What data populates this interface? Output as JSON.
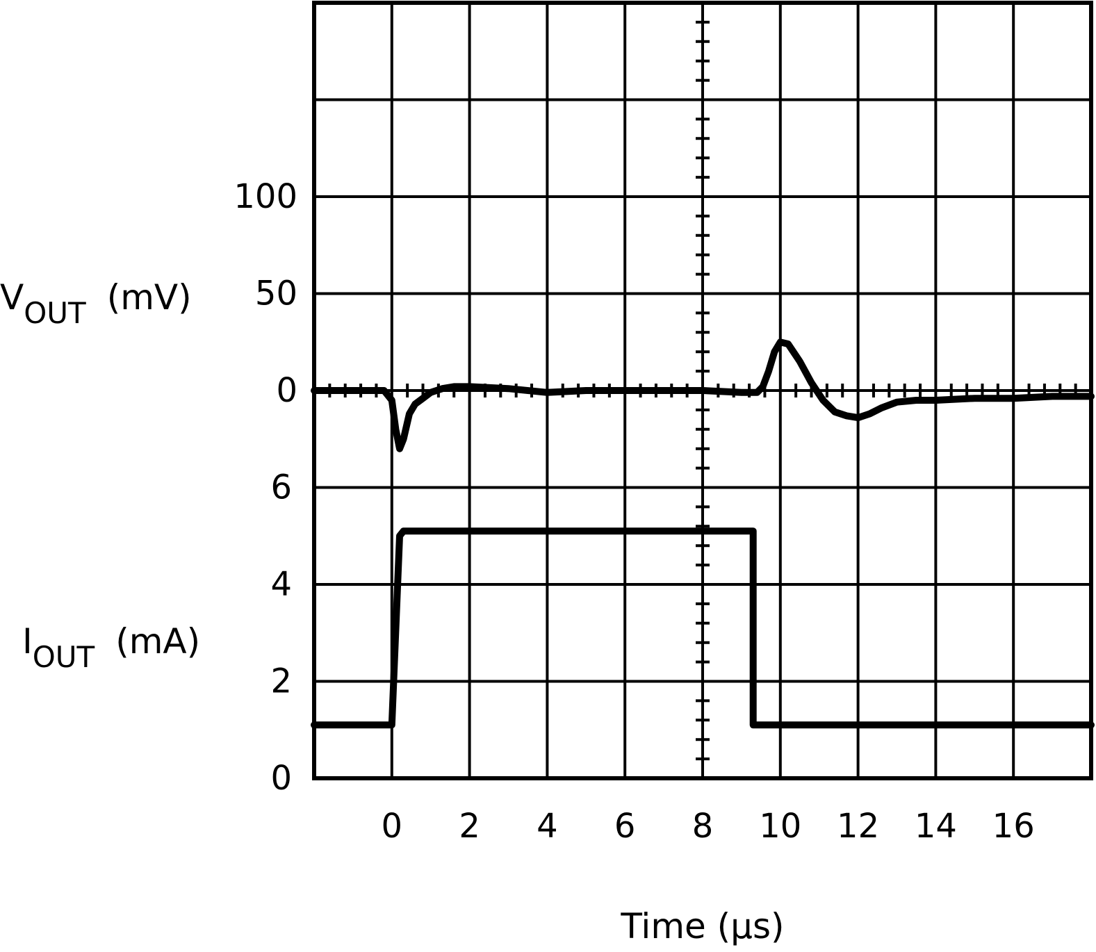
{
  "chart_data": {
    "type": "line",
    "xlabel": "Time (µs)",
    "x_ticks": [
      "0",
      "2",
      "4",
      "6",
      "8",
      "10",
      "12",
      "14",
      "16"
    ],
    "xlim": [
      -2,
      18
    ],
    "grid": true,
    "vout_axis": {
      "label_main": "V",
      "label_sub": "OUT",
      "label_unit": "(mV)",
      "ticks": [
        "100",
        "50",
        "0"
      ],
      "tick_values": [
        100,
        50,
        0
      ],
      "zero_row": 4
    },
    "iout_axis": {
      "label_main": "I",
      "label_sub": "OUT",
      "label_unit": "(mA)",
      "ticks": [
        "6",
        "4",
        "2",
        "0"
      ],
      "tick_values": [
        6,
        4,
        2,
        0
      ]
    },
    "series": [
      {
        "axis": "vout",
        "x": [
          -2,
          -0.2,
          0,
          0.1,
          0.2,
          0.3,
          0.45,
          0.6,
          0.8,
          1.0,
          1.3,
          1.6,
          2.0,
          3.0,
          4.0,
          5.0,
          6.0,
          7.0,
          8.0,
          9.0,
          9.4,
          9.55,
          9.7,
          9.85,
          10.0,
          10.2,
          10.5,
          10.8,
          11.1,
          11.4,
          11.7,
          12.0,
          12.3,
          12.6,
          13.0,
          13.5,
          14.0,
          15.0,
          16.0,
          17.0,
          18.0
        ],
        "y": [
          0,
          0,
          -5,
          -20,
          -30,
          -25,
          -12,
          -7,
          -4,
          -1,
          1,
          2,
          2,
          1,
          -1,
          0,
          0,
          0,
          0,
          -1,
          -1,
          2,
          10,
          20,
          25,
          24,
          15,
          4,
          -5,
          -11,
          -13,
          -14,
          -12,
          -9,
          -6,
          -5,
          -5,
          -4,
          -4,
          -3,
          -3
        ]
      },
      {
        "axis": "iout",
        "x": [
          -2,
          0,
          0.2,
          0.3,
          1.0,
          4.0,
          8.0,
          9.3,
          9.3,
          12.0,
          16.0,
          18.0
        ],
        "y": [
          1.1,
          1.1,
          5.0,
          5.1,
          5.1,
          5.1,
          5.1,
          5.1,
          1.1,
          1.1,
          1.1,
          1.1
        ]
      }
    ]
  }
}
